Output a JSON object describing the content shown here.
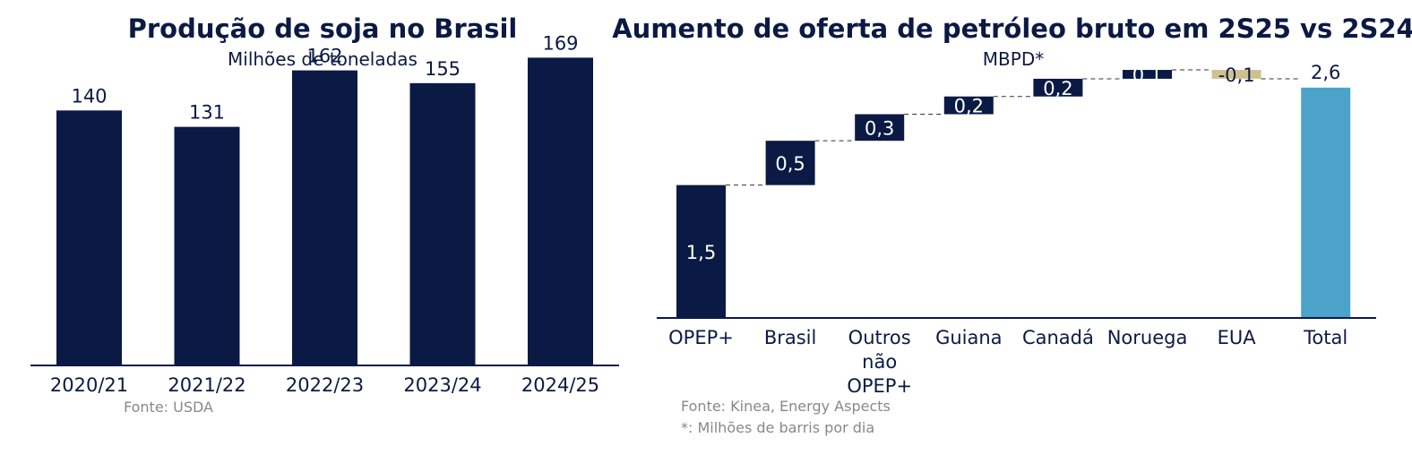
{
  "chart_data": [
    {
      "type": "bar",
      "title": "Produção de soja no Brasil",
      "subtitle": "Milhões de toneladas",
      "categories": [
        "2020/21",
        "2021/22",
        "2022/23",
        "2023/24",
        "2024/25"
      ],
      "values": [
        140,
        131,
        162,
        155,
        169
      ],
      "data_labels": [
        "140",
        "131",
        "162",
        "155",
        "169"
      ],
      "ylim": [
        0,
        180
      ],
      "source": "Fonte: USDA",
      "color": "#0b1a44",
      "grid": false
    },
    {
      "type": "bar",
      "subtype": "waterfall",
      "title": "Aumento de oferta de petróleo bruto em 2S25 vs 2S24",
      "subtitle": "MBPD*",
      "categories": [
        [
          "OPEP+"
        ],
        [
          "Brasil"
        ],
        [
          "Outros",
          "não",
          "OPEP+"
        ],
        [
          "Guiana"
        ],
        [
          "Canadá"
        ],
        [
          "Noruega"
        ],
        [
          "EUA"
        ],
        [
          "Total"
        ]
      ],
      "values": [
        1.5,
        0.5,
        0.3,
        0.2,
        0.2,
        0.1,
        -0.1,
        2.6
      ],
      "data_labels": [
        "1,5",
        "0,5",
        "0,3",
        "0,2",
        "0,2",
        "0,1",
        "-0,1",
        "2,6"
      ],
      "ylim": [
        0,
        2.75
      ],
      "source": "Fonte: Kinea, Energy Aspects",
      "footnote": "*: Milhões de barris por dia",
      "colors": {
        "positive": "#0b1a44",
        "negative": "#cfc18f",
        "total": "#4ba3c9"
      },
      "grid": false
    }
  ]
}
